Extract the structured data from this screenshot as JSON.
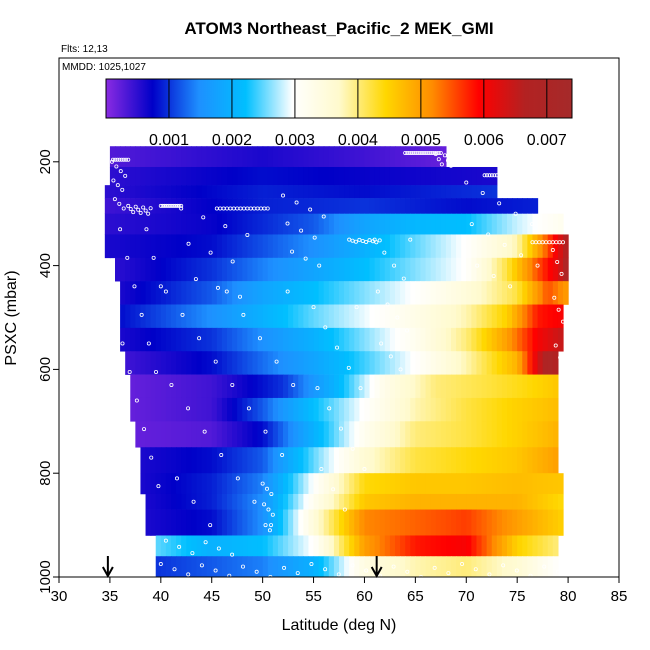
{
  "chart_data": {
    "type": "heatmap",
    "title": "ATOM3 Northeast_Pacific_2 MEK_GMI",
    "subtitle_lines": [
      "Flts: 12,13",
      "MMDD: 1025,1027"
    ],
    "xlabel": "Latitude (deg N)",
    "ylabel": "PSXC (mbar)",
    "xlim": [
      30,
      85
    ],
    "ylim": [
      1000,
      0
    ],
    "x_ticks": [
      "30",
      "35",
      "40",
      "45",
      "50",
      "55",
      "60",
      "65",
      "70",
      "75",
      "80",
      "85"
    ],
    "y_ticks": [
      "200",
      "400",
      "600",
      "800",
      "1000"
    ],
    "colorbar": {
      "min": 0.0,
      "max": 0.0074,
      "tick_values": [
        0.001,
        0.002,
        0.003,
        0.004,
        0.005,
        0.006,
        0.007
      ],
      "tick_labels": [
        "0.001",
        "0.002",
        "0.003",
        "0.004",
        "0.005",
        "0.006",
        "0.007"
      ],
      "colors": [
        "#8a2be2",
        "#0000c8",
        "#1e90ff",
        "#00bfff",
        "#ffffff",
        "#fffacd",
        "#ffd700",
        "#ff8c00",
        "#ff0000",
        "#b22222",
        "#a52a2a"
      ]
    },
    "layers": [
      {
        "pmin": 170,
        "pmax": 210,
        "lat_min": 35.0,
        "lat_max": 68.0,
        "lats": [
          35,
          50,
          60,
          68
        ],
        "vals": [
          0.0003,
          0.0006,
          0.0004,
          0.0002
        ]
      },
      {
        "pmin": 210,
        "pmax": 245,
        "lat_min": 35.0,
        "lat_max": 73.0,
        "lats": [
          35,
          50,
          60,
          73
        ],
        "vals": [
          0.0005,
          0.0008,
          0.0007,
          0.0006
        ]
      },
      {
        "pmin": 245,
        "pmax": 270,
        "lat_min": 34.5,
        "lat_max": 73.0,
        "lats": [
          34.5,
          50,
          60,
          73
        ],
        "vals": [
          0.0005,
          0.0009,
          0.0008,
          0.001
        ]
      },
      {
        "pmin": 270,
        "pmax": 300,
        "lat_min": 34.5,
        "lat_max": 77.0,
        "lats": [
          34.5,
          50,
          60,
          70,
          77
        ],
        "vals": [
          0.0004,
          0.0009,
          0.001,
          0.0008,
          0.0009
        ]
      },
      {
        "pmin": 300,
        "pmax": 340,
        "lat_min": 34.5,
        "lat_max": 79.5,
        "lats": [
          34.5,
          45,
          55,
          60,
          65,
          70,
          75,
          79.5
        ],
        "vals": [
          0.0005,
          0.0007,
          0.0012,
          0.0018,
          0.0021,
          0.0022,
          0.0028,
          0.0032
        ]
      },
      {
        "pmin": 340,
        "pmax": 385,
        "lat_min": 34.5,
        "lat_max": 80.0,
        "lats": [
          34.5,
          45,
          55,
          60,
          65,
          70,
          75,
          78,
          80
        ],
        "vals": [
          0.0006,
          0.0008,
          0.0015,
          0.002,
          0.0025,
          0.003,
          0.0038,
          0.0055,
          0.0068
        ]
      },
      {
        "pmin": 385,
        "pmax": 430,
        "lat_min": 35.5,
        "lat_max": 80.0,
        "lats": [
          35.5,
          45,
          55,
          60,
          65,
          70,
          74,
          77,
          79,
          80
        ],
        "vals": [
          0.0005,
          0.001,
          0.0018,
          0.0022,
          0.0026,
          0.003,
          0.0042,
          0.0055,
          0.0062,
          0.007
        ]
      },
      {
        "pmin": 430,
        "pmax": 475,
        "lat_min": 36.0,
        "lat_max": 80.0,
        "lats": [
          36,
          45,
          50,
          55,
          60,
          65,
          70,
          75,
          78,
          80
        ],
        "vals": [
          0.0006,
          0.0012,
          0.0018,
          0.0022,
          0.0026,
          0.003,
          0.0035,
          0.0042,
          0.0055,
          0.005
        ]
      },
      {
        "pmin": 475,
        "pmax": 520,
        "lat_min": 36.0,
        "lat_max": 79.5,
        "lats": [
          36,
          45,
          55,
          65,
          70,
          74,
          77,
          79.5
        ],
        "vals": [
          0.0008,
          0.0015,
          0.0025,
          0.0033,
          0.0038,
          0.0045,
          0.0058,
          0.006
        ]
      },
      {
        "pmin": 520,
        "pmax": 565,
        "lat_min": 36.0,
        "lat_max": 79.5,
        "lats": [
          36,
          45,
          55,
          65,
          70,
          74,
          77,
          79.5
        ],
        "vals": [
          0.0006,
          0.001,
          0.002,
          0.0032,
          0.004,
          0.005,
          0.006,
          0.0065
        ]
      },
      {
        "pmin": 565,
        "pmax": 610,
        "lat_min": 36.5,
        "lat_max": 79.0,
        "lats": [
          36.5,
          45,
          55,
          65,
          70,
          75,
          78,
          79
        ],
        "vals": [
          0.0004,
          0.0008,
          0.0018,
          0.003,
          0.0038,
          0.0048,
          0.007,
          0.0066
        ]
      },
      {
        "pmin": 610,
        "pmax": 655,
        "lat_min": 37.0,
        "lat_max": 79.0,
        "lats": [
          37,
          45,
          52,
          57,
          62,
          67,
          72,
          76,
          79
        ],
        "vals": [
          0.0002,
          0.0004,
          0.001,
          0.002,
          0.0033,
          0.004,
          0.0042,
          0.0044,
          0.0046
        ]
      },
      {
        "pmin": 655,
        "pmax": 700,
        "lat_min": 37.0,
        "lat_max": 79.0,
        "lats": [
          37,
          45,
          50,
          55,
          60,
          65,
          70,
          75,
          79
        ],
        "vals": [
          0.0002,
          0.0004,
          0.0012,
          0.0022,
          0.003,
          0.0038,
          0.0042,
          0.0045,
          0.0047
        ]
      },
      {
        "pmin": 700,
        "pmax": 750,
        "lat_min": 37.5,
        "lat_max": 79.0,
        "lats": [
          37.5,
          45,
          50,
          55,
          60,
          65,
          70,
          75,
          79
        ],
        "vals": [
          0.0002,
          0.0003,
          0.0008,
          0.002,
          0.0032,
          0.004,
          0.0042,
          0.0045,
          0.0048
        ]
      },
      {
        "pmin": 750,
        "pmax": 800,
        "lat_min": 38.0,
        "lat_max": 79.0,
        "lats": [
          38,
          45,
          50,
          55,
          60,
          65,
          70,
          75,
          79
        ],
        "vals": [
          0.0006,
          0.0008,
          0.0012,
          0.0025,
          0.0036,
          0.0042,
          0.0044,
          0.0046,
          0.005
        ]
      },
      {
        "pmin": 800,
        "pmax": 840,
        "lat_min": 38.0,
        "lat_max": 79.5,
        "lats": [
          38,
          45,
          50,
          55,
          60,
          65,
          70,
          75,
          79.5
        ],
        "vals": [
          0.0006,
          0.0009,
          0.0014,
          0.003,
          0.0044,
          0.0046,
          0.0046,
          0.0047,
          0.0046
        ]
      },
      {
        "pmin": 840,
        "pmax": 870,
        "lat_min": 38.5,
        "lat_max": 79.5,
        "lats": [
          38.5,
          45,
          50,
          55,
          60,
          65,
          70,
          75,
          79.5
        ],
        "vals": [
          0.0006,
          0.0009,
          0.0015,
          0.0032,
          0.0046,
          0.0048,
          0.0048,
          0.0048,
          0.0044
        ]
      },
      {
        "pmin": 870,
        "pmax": 920,
        "lat_min": 38.5,
        "lat_max": 79.5,
        "lats": [
          38.5,
          45,
          50,
          55,
          60,
          65,
          70,
          75,
          79.5
        ],
        "vals": [
          0.0006,
          0.0008,
          0.0015,
          0.0035,
          0.0052,
          0.0054,
          0.0056,
          0.005,
          0.0045
        ]
      },
      {
        "pmin": 920,
        "pmax": 960,
        "lat_min": 39.5,
        "lat_max": 79.0,
        "lats": [
          39.5,
          45,
          50,
          55,
          60,
          65,
          70,
          75,
          79
        ],
        "vals": [
          0.0025,
          0.002,
          0.0022,
          0.003,
          0.005,
          0.0058,
          0.006,
          0.0045,
          0.004
        ]
      },
      {
        "pmin": 960,
        "pmax": 1005,
        "lat_min": 39.5,
        "lat_max": 79.0,
        "lats": [
          39.5,
          45,
          50,
          55,
          60,
          65,
          70,
          75,
          79
        ],
        "vals": [
          0.001,
          0.0012,
          0.0014,
          0.002,
          0.0034,
          0.0038,
          0.004,
          0.0036,
          0.003
        ]
      }
    ],
    "flight_points": [
      {
        "lat_min": 35.3,
        "lat_max": 36.8,
        "p_min": 196,
        "p_max": 196,
        "n": 8
      },
      {
        "lat_min": 35.2,
        "lat_max": 36.5,
        "p_min": 200,
        "p_max": 290,
        "n": 10
      },
      {
        "lat_min": 36.8,
        "lat_max": 39.0,
        "p_min": 285,
        "p_max": 300,
        "n": 10
      },
      {
        "lat_min": 40.0,
        "lat_max": 42.0,
        "p_min": 285,
        "p_max": 285,
        "n": 12
      },
      {
        "lat_min": 42.0,
        "lat_max": 48.5,
        "p_min": 290,
        "p_max": 460,
        "n": 10
      },
      {
        "lat_min": 45.5,
        "lat_max": 50.5,
        "p_min": 290,
        "p_max": 290,
        "n": 16
      },
      {
        "lat_min": 52.0,
        "lat_max": 56.0,
        "p_min": 265,
        "p_max": 400,
        "n": 10
      },
      {
        "lat_min": 58.5,
        "lat_max": 61.5,
        "p_min": 350,
        "p_max": 355,
        "n": 10
      },
      {
        "lat_min": 61.0,
        "lat_max": 64.5,
        "p_min": 350,
        "p_max": 600,
        "n": 12
      },
      {
        "lat_min": 64.0,
        "lat_max": 67.5,
        "p_min": 183,
        "p_max": 183,
        "n": 18
      },
      {
        "lat_min": 67.0,
        "lat_max": 68.5,
        "p_min": 185,
        "p_max": 210,
        "n": 6
      },
      {
        "lat_min": 71.8,
        "lat_max": 73.0,
        "p_min": 226,
        "p_max": 226,
        "n": 6
      },
      {
        "lat_min": 70.0,
        "lat_max": 77.0,
        "p_min": 240,
        "p_max": 440,
        "n": 14
      },
      {
        "lat_min": 76.5,
        "lat_max": 79.5,
        "p_min": 355,
        "p_max": 355,
        "n": 10
      },
      {
        "lat_min": 78.5,
        "lat_max": 79.5,
        "p_min": 370,
        "p_max": 600,
        "n": 8
      },
      {
        "lat_min": 36.0,
        "lat_max": 40.0,
        "p_min": 330,
        "p_max": 880,
        "n": 18
      },
      {
        "lat_min": 40.5,
        "lat_max": 53.0,
        "p_min": 450,
        "p_max": 900,
        "n": 24
      },
      {
        "lat_min": 50.0,
        "lat_max": 51.0,
        "p_min": 820,
        "p_max": 920,
        "n": 8
      },
      {
        "lat_min": 55.0,
        "lat_max": 60.0,
        "p_min": 480,
        "p_max": 870,
        "n": 14
      },
      {
        "lat_min": 40.0,
        "lat_max": 79.0,
        "p_min": 975,
        "p_max": 1000,
        "n": 30
      },
      {
        "lat_min": 40.5,
        "lat_max": 47.0,
        "p_min": 930,
        "p_max": 960,
        "n": 6
      }
    ],
    "arrows_lat": [
      34.8,
      61.2
    ]
  }
}
